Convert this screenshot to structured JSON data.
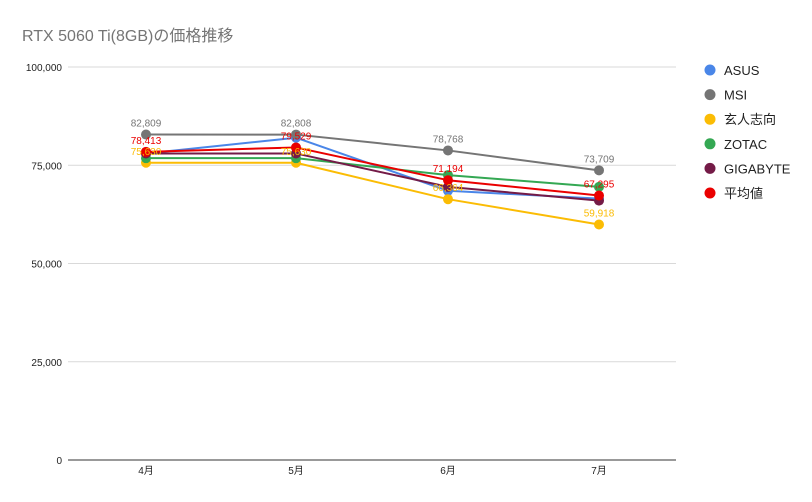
{
  "chart_data": {
    "type": "line",
    "title": "RTX 5060 Ti(8GB)の価格推移",
    "categories": [
      "4月",
      "5月",
      "6月",
      "7月"
    ],
    "ylim": [
      0,
      100000
    ],
    "yticks": [
      0,
      25000,
      50000,
      75000,
      100000
    ],
    "ytick_labels": [
      "0",
      "25,000",
      "50,000",
      "75,000",
      "100,000"
    ],
    "grid": true,
    "legend_position": "right",
    "series": [
      {
        "name": "ASUS",
        "color": "#4a86e8",
        "values": [
          78000,
          82000,
          68500,
          66500
        ],
        "labels": [
          null,
          null,
          null,
          null
        ]
      },
      {
        "name": "MSI",
        "color": "#757575",
        "values": [
          82809,
          82808,
          78768,
          73709
        ],
        "labels": [
          "82,809",
          "82,808",
          "78,768",
          "73,709"
        ]
      },
      {
        "name": "玄人志向",
        "color": "#fbbc04",
        "values": [
          75630,
          75630,
          66364,
          59918
        ],
        "labels": [
          "75,630",
          "75,630",
          "66,364",
          "59,918"
        ]
      },
      {
        "name": "ZOTAC",
        "color": "#34a853",
        "values": [
          76800,
          76800,
          72500,
          69500
        ],
        "labels": [
          null,
          null,
          null,
          null
        ]
      },
      {
        "name": "GIGABYTE",
        "color": "#741b47",
        "values": [
          78000,
          78000,
          69500,
          66000
        ],
        "labels": [
          null,
          null,
          null,
          null
        ]
      },
      {
        "name": "平均値",
        "color": "#ea0000",
        "values": [
          78413,
          79529,
          71194,
          67295
        ],
        "labels": [
          "78,413",
          "79,529",
          "71,194",
          "67,295"
        ]
      }
    ]
  }
}
